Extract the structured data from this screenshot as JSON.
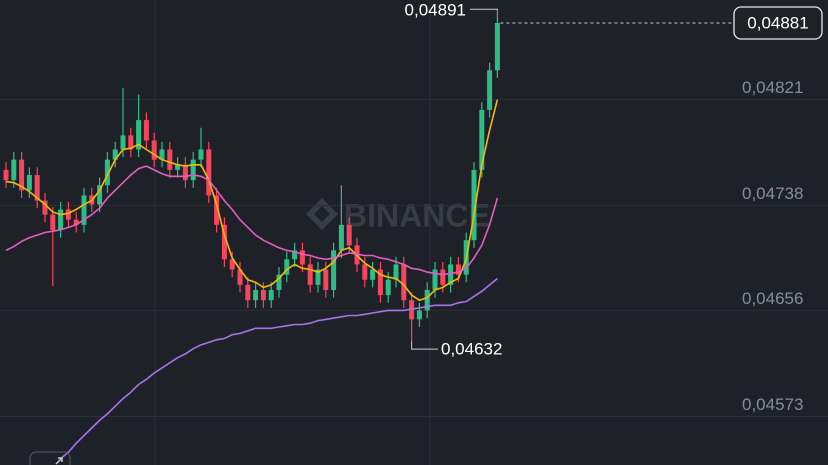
{
  "chart_data": {
    "type": "candlestick",
    "watermark": "BINANCE",
    "colors": {
      "up": "#2ebd85",
      "down": "#f6465d",
      "background": "#1f2129",
      "grid": "#2b2f38"
    },
    "open": [
      0.04766,
      0.04758,
      0.04774,
      0.0475,
      0.04762,
      0.04742,
      0.04731,
      0.04719,
      0.04735,
      0.04727,
      0.04723,
      0.04746,
      0.04739,
      0.04754,
      0.04774,
      0.04782,
      0.04793,
      0.04782,
      0.04805,
      0.04789,
      0.04774,
      0.04782,
      0.04766,
      0.0477,
      0.04758,
      0.04774,
      0.04782,
      0.04746,
      0.04723,
      0.04696,
      0.04688,
      0.04676,
      0.04664,
      0.04672,
      0.04664,
      0.04672,
      0.04684,
      0.04696,
      0.04703,
      0.04692,
      0.04676,
      0.04688,
      0.04672,
      0.04703,
      0.04723,
      0.04707,
      0.04692,
      0.0468,
      0.04688,
      0.04668,
      0.0468,
      0.04692,
      0.04664,
      0.04649,
      0.04656,
      0.04672,
      0.04688,
      0.04676,
      0.04692,
      0.04684,
      0.04711,
      0.04766,
      0.04813,
      0.04844
    ],
    "high": [
      0.04772,
      0.0478,
      0.0478,
      0.04768,
      0.04768,
      0.04748,
      0.04737,
      0.04741,
      0.04741,
      0.04733,
      0.04752,
      0.04752,
      0.0476,
      0.0478,
      0.04788,
      0.0483,
      0.04799,
      0.04825,
      0.04811,
      0.04795,
      0.04788,
      0.04788,
      0.04776,
      0.04776,
      0.0478,
      0.04799,
      0.04788,
      0.04752,
      0.04729,
      0.04702,
      0.04694,
      0.04682,
      0.04678,
      0.04678,
      0.04678,
      0.0469,
      0.04702,
      0.04709,
      0.04709,
      0.04698,
      0.04694,
      0.04694,
      0.04709,
      0.04754,
      0.04729,
      0.04713,
      0.04698,
      0.04694,
      0.04694,
      0.04686,
      0.04698,
      0.04698,
      0.0467,
      0.04662,
      0.04678,
      0.04694,
      0.04694,
      0.04698,
      0.04698,
      0.04717,
      0.04772,
      0.04819,
      0.0485,
      0.04891
    ],
    "low": [
      0.04752,
      0.04752,
      0.04744,
      0.04744,
      0.04736,
      0.04725,
      0.04675,
      0.04713,
      0.04721,
      0.04717,
      0.04717,
      0.04733,
      0.04733,
      0.04748,
      0.04768,
      0.04776,
      0.04776,
      0.04776,
      0.04783,
      0.04768,
      0.04768,
      0.0476,
      0.0476,
      0.04752,
      0.04752,
      0.04768,
      0.0474,
      0.04717,
      0.0469,
      0.04682,
      0.0467,
      0.04658,
      0.04658,
      0.04658,
      0.04658,
      0.04666,
      0.04678,
      0.0469,
      0.04686,
      0.0467,
      0.0467,
      0.04666,
      0.04666,
      0.04697,
      0.04701,
      0.04686,
      0.04674,
      0.04674,
      0.04662,
      0.04662,
      0.04674,
      0.04658,
      0.04632,
      0.04643,
      0.0465,
      0.04666,
      0.0467,
      0.0467,
      0.04678,
      0.04678,
      0.04705,
      0.0476,
      0.04807,
      0.04838
    ],
    "close": [
      0.04758,
      0.04774,
      0.0475,
      0.04762,
      0.04742,
      0.04731,
      0.04719,
      0.04735,
      0.04727,
      0.04723,
      0.04746,
      0.04739,
      0.04754,
      0.04774,
      0.04782,
      0.04793,
      0.04782,
      0.04805,
      0.04789,
      0.04774,
      0.04782,
      0.04766,
      0.0477,
      0.04758,
      0.04774,
      0.04782,
      0.04746,
      0.04723,
      0.04696,
      0.04688,
      0.04676,
      0.04664,
      0.04672,
      0.04664,
      0.04672,
      0.04684,
      0.04696,
      0.04703,
      0.04692,
      0.04676,
      0.04688,
      0.04672,
      0.04703,
      0.04723,
      0.04707,
      0.04692,
      0.0468,
      0.04688,
      0.04668,
      0.0468,
      0.04692,
      0.04664,
      0.04649,
      0.04656,
      0.04672,
      0.04688,
      0.04676,
      0.04692,
      0.04684,
      0.04711,
      0.04766,
      0.04813,
      0.04844,
      0.04881
    ],
    "moving_averages": [
      {
        "color": "#f0b90b",
        "values": [
          0.04757,
          0.04756,
          0.04753,
          0.04749,
          0.04744,
          0.04739,
          0.04733,
          0.04731,
          0.04732,
          0.04735,
          0.04739,
          0.04742,
          0.0475,
          0.04762,
          0.04774,
          0.04782,
          0.04783,
          0.04786,
          0.04782,
          0.04778,
          0.04774,
          0.04772,
          0.0477,
          0.04769,
          0.0477,
          0.0477,
          0.04758,
          0.04739,
          0.04715,
          0.04697,
          0.04688,
          0.0468,
          0.04678,
          0.04674,
          0.04676,
          0.04681,
          0.04688,
          0.04692,
          0.04689,
          0.04688,
          0.04686,
          0.04689,
          0.04694,
          0.04703,
          0.04705,
          0.04699,
          0.04693,
          0.04689,
          0.04684,
          0.04682,
          0.04681,
          0.04676,
          0.04668,
          0.04664,
          0.04666,
          0.04672,
          0.04674,
          0.04678,
          0.04681,
          0.04696,
          0.04731,
          0.0477,
          0.04797,
          0.04821
        ]
      },
      {
        "color": "#e05fc0",
        "values": [
          0.04703,
          0.04706,
          0.0471,
          0.04713,
          0.04715,
          0.04717,
          0.04718,
          0.04719,
          0.04721,
          0.04723,
          0.04727,
          0.04731,
          0.04736,
          0.04744,
          0.0475,
          0.04756,
          0.04762,
          0.04767,
          0.04769,
          0.04766,
          0.04763,
          0.04761,
          0.04761,
          0.04761,
          0.04762,
          0.04761,
          0.04758,
          0.0475,
          0.04742,
          0.04735,
          0.04727,
          0.04721,
          0.04715,
          0.04711,
          0.04708,
          0.04705,
          0.04703,
          0.04702,
          0.047,
          0.04699,
          0.04697,
          0.04696,
          0.04697,
          0.04699,
          0.04701,
          0.047,
          0.04699,
          0.04699,
          0.04697,
          0.04696,
          0.04694,
          0.04692,
          0.04689,
          0.04688,
          0.04686,
          0.04685,
          0.04684,
          0.04685,
          0.04686,
          0.04689,
          0.04697,
          0.04707,
          0.04723,
          0.04744
        ]
      },
      {
        "color": "#a474e8",
        "values": [
          null,
          null,
          null,
          null,
          null,
          null,
          null,
          0.0454,
          0.04545,
          0.04552,
          0.04558,
          0.04564,
          0.0457,
          0.04575,
          0.04581,
          0.04587,
          0.04592,
          0.04598,
          0.04602,
          0.04607,
          0.04611,
          0.04615,
          0.04619,
          0.04622,
          0.04626,
          0.04629,
          0.04631,
          0.04633,
          0.04634,
          0.04637,
          0.04638,
          0.0464,
          0.04642,
          0.04642,
          0.04642,
          0.04643,
          0.04644,
          0.04645,
          0.04645,
          0.04646,
          0.04648,
          0.04649,
          0.0465,
          0.04651,
          0.04652,
          0.04652,
          0.04653,
          0.04654,
          0.04655,
          0.04656,
          0.04656,
          0.04656,
          0.04657,
          0.04658,
          0.04659,
          0.0466,
          0.0466,
          0.0466,
          0.04662,
          0.04663,
          0.04667,
          0.04671,
          0.04676,
          0.04681
        ]
      }
    ],
    "ylim": [
      0.04535,
      0.04899
    ],
    "yticks": [
      {
        "value": 0.04573,
        "label": "0,04573"
      },
      {
        "value": 0.04656,
        "label": "0,04656"
      },
      {
        "value": 0.04738,
        "label": "0,04738"
      },
      {
        "value": 0.04821,
        "label": "0,04821"
      }
    ],
    "grid": true,
    "high_marker": {
      "index": 63,
      "value": 0.04891,
      "label": "0,04891"
    },
    "low_marker": {
      "index": 52,
      "value": 0.04632,
      "label": "0,04632"
    },
    "last_price": {
      "value": 0.04881,
      "label": "0,04881"
    }
  }
}
